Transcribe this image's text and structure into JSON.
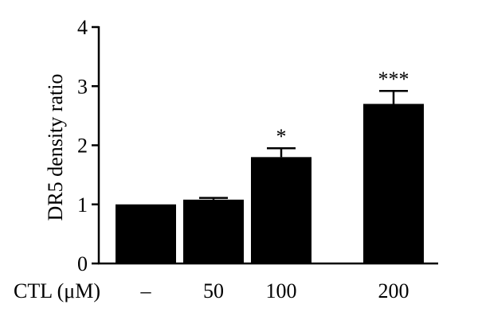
{
  "chart_data": {
    "type": "bar",
    "title": "",
    "xlabel": "CTL (μM)",
    "ylabel": "DR5 density ratio",
    "ylim": [
      0,
      4
    ],
    "yticks": [
      0,
      1,
      2,
      3,
      4
    ],
    "categories": [
      "–",
      "50",
      "100",
      "200"
    ],
    "values": [
      1.0,
      1.08,
      1.8,
      2.7
    ],
    "errors": [
      0.0,
      0.03,
      0.15,
      0.22
    ],
    "significance": [
      "",
      "",
      "*",
      "***"
    ],
    "bar_color": "#000000",
    "grid": false,
    "legend": "none"
  }
}
